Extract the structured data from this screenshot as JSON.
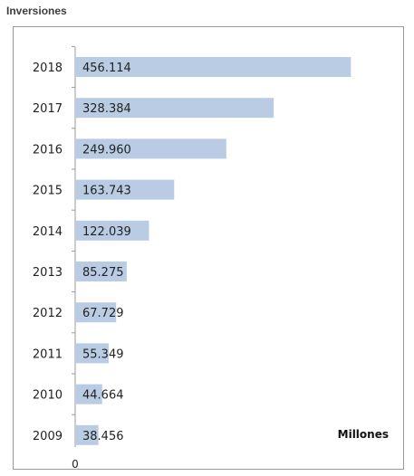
{
  "header": {
    "title": "Inversiones"
  },
  "chart_data": {
    "type": "bar",
    "orientation": "horizontal",
    "categories": [
      "2018",
      "2017",
      "2016",
      "2015",
      "2014",
      "2013",
      "2012",
      "2011",
      "2010",
      "2009"
    ],
    "values": [
      456114,
      328384,
      249960,
      163743,
      122039,
      85275,
      67729,
      55349,
      44664,
      38456
    ],
    "value_labels": [
      "456.114",
      "328.384",
      "249.960",
      "163.743",
      "122.039",
      "85.275",
      "67.729",
      "55.349",
      "44.664",
      "38.456"
    ],
    "title": "",
    "xlabel": "Millones",
    "ylabel": "",
    "x_tick_labels": [
      "0"
    ],
    "xlim": [
      0,
      520000
    ],
    "grid": false,
    "colors": {
      "bar": "#b9cce4",
      "axis": "#9a9a9a",
      "text": "#222222"
    }
  }
}
